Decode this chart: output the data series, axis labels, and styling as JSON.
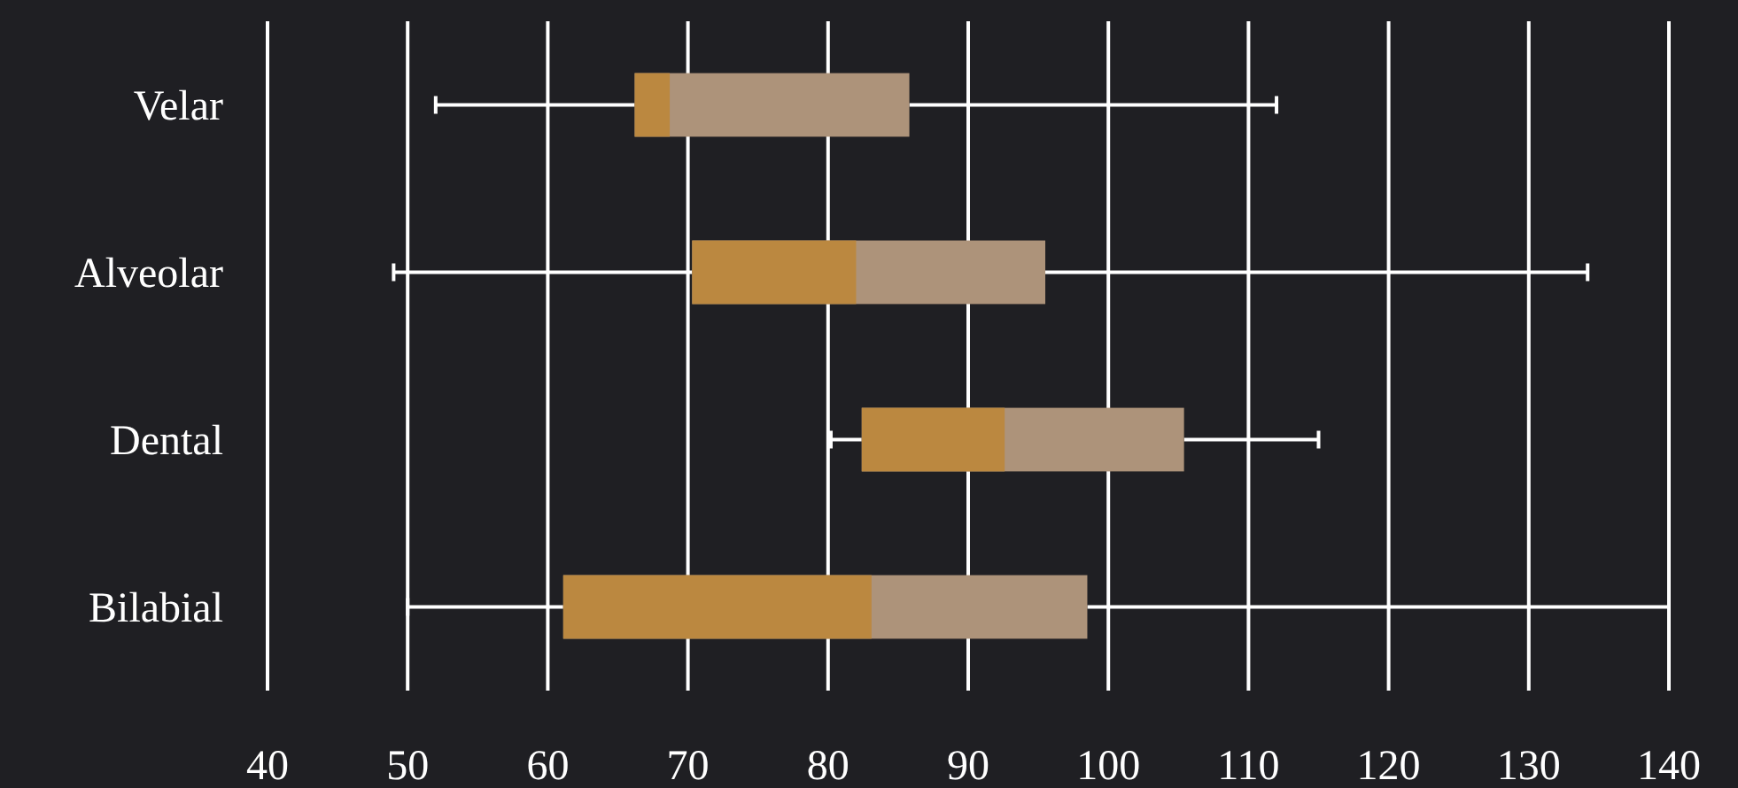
{
  "chart_data": {
    "type": "box",
    "orientation": "horizontal",
    "categories": [
      "Velar",
      "Alveolar",
      "Dental",
      "Bilabial"
    ],
    "series": [
      {
        "color": "#ad937a",
        "colors": [
          "#bb8840",
          "#bb8840",
          "#bb8840",
          "#bb8840"
        ],
        "boxes": [
          {
            "low": 52,
            "q1": 66.2,
            "median": 68.7,
            "q3": 85.8,
            "high": 112
          },
          {
            "low": 49,
            "q1": 70.3,
            "median": 82,
            "q3": 95.5,
            "high": 134.2
          },
          {
            "low": 80.2,
            "q1": 82.4,
            "median": 92.6,
            "q3": 105.4,
            "high": 115
          },
          {
            "low": 50,
            "q1": 61.1,
            "median": 83.1,
            "q3": 98.5,
            "high": 140
          }
        ]
      }
    ],
    "xlim": [
      40,
      140
    ],
    "xticks": [
      40,
      50,
      60,
      70,
      80,
      90,
      100,
      110,
      120,
      130,
      140
    ],
    "grid": "x"
  }
}
